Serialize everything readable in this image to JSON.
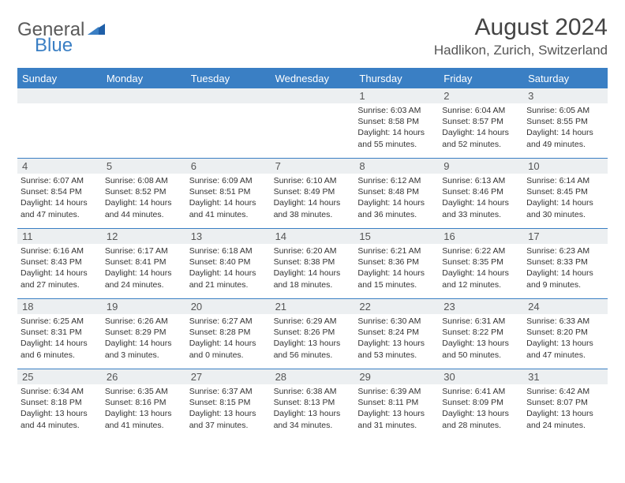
{
  "logo": {
    "text1": "General",
    "text2": "Blue"
  },
  "title": "August 2024",
  "location": "Hadlikon, Zurich, Switzerland",
  "colors": {
    "accent": "#3a7fc4",
    "header_bg": "#3a7fc4",
    "daynum_bg": "#eceff1",
    "text": "#333333"
  },
  "day_headers": [
    "Sunday",
    "Monday",
    "Tuesday",
    "Wednesday",
    "Thursday",
    "Friday",
    "Saturday"
  ],
  "weeks": [
    [
      {
        "n": "",
        "sr": "",
        "ss": "",
        "dl": ""
      },
      {
        "n": "",
        "sr": "",
        "ss": "",
        "dl": ""
      },
      {
        "n": "",
        "sr": "",
        "ss": "",
        "dl": ""
      },
      {
        "n": "",
        "sr": "",
        "ss": "",
        "dl": ""
      },
      {
        "n": "1",
        "sr": "Sunrise: 6:03 AM",
        "ss": "Sunset: 8:58 PM",
        "dl": "Daylight: 14 hours and 55 minutes."
      },
      {
        "n": "2",
        "sr": "Sunrise: 6:04 AM",
        "ss": "Sunset: 8:57 PM",
        "dl": "Daylight: 14 hours and 52 minutes."
      },
      {
        "n": "3",
        "sr": "Sunrise: 6:05 AM",
        "ss": "Sunset: 8:55 PM",
        "dl": "Daylight: 14 hours and 49 minutes."
      }
    ],
    [
      {
        "n": "4",
        "sr": "Sunrise: 6:07 AM",
        "ss": "Sunset: 8:54 PM",
        "dl": "Daylight: 14 hours and 47 minutes."
      },
      {
        "n": "5",
        "sr": "Sunrise: 6:08 AM",
        "ss": "Sunset: 8:52 PM",
        "dl": "Daylight: 14 hours and 44 minutes."
      },
      {
        "n": "6",
        "sr": "Sunrise: 6:09 AM",
        "ss": "Sunset: 8:51 PM",
        "dl": "Daylight: 14 hours and 41 minutes."
      },
      {
        "n": "7",
        "sr": "Sunrise: 6:10 AM",
        "ss": "Sunset: 8:49 PM",
        "dl": "Daylight: 14 hours and 38 minutes."
      },
      {
        "n": "8",
        "sr": "Sunrise: 6:12 AM",
        "ss": "Sunset: 8:48 PM",
        "dl": "Daylight: 14 hours and 36 minutes."
      },
      {
        "n": "9",
        "sr": "Sunrise: 6:13 AM",
        "ss": "Sunset: 8:46 PM",
        "dl": "Daylight: 14 hours and 33 minutes."
      },
      {
        "n": "10",
        "sr": "Sunrise: 6:14 AM",
        "ss": "Sunset: 8:45 PM",
        "dl": "Daylight: 14 hours and 30 minutes."
      }
    ],
    [
      {
        "n": "11",
        "sr": "Sunrise: 6:16 AM",
        "ss": "Sunset: 8:43 PM",
        "dl": "Daylight: 14 hours and 27 minutes."
      },
      {
        "n": "12",
        "sr": "Sunrise: 6:17 AM",
        "ss": "Sunset: 8:41 PM",
        "dl": "Daylight: 14 hours and 24 minutes."
      },
      {
        "n": "13",
        "sr": "Sunrise: 6:18 AM",
        "ss": "Sunset: 8:40 PM",
        "dl": "Daylight: 14 hours and 21 minutes."
      },
      {
        "n": "14",
        "sr": "Sunrise: 6:20 AM",
        "ss": "Sunset: 8:38 PM",
        "dl": "Daylight: 14 hours and 18 minutes."
      },
      {
        "n": "15",
        "sr": "Sunrise: 6:21 AM",
        "ss": "Sunset: 8:36 PM",
        "dl": "Daylight: 14 hours and 15 minutes."
      },
      {
        "n": "16",
        "sr": "Sunrise: 6:22 AM",
        "ss": "Sunset: 8:35 PM",
        "dl": "Daylight: 14 hours and 12 minutes."
      },
      {
        "n": "17",
        "sr": "Sunrise: 6:23 AM",
        "ss": "Sunset: 8:33 PM",
        "dl": "Daylight: 14 hours and 9 minutes."
      }
    ],
    [
      {
        "n": "18",
        "sr": "Sunrise: 6:25 AM",
        "ss": "Sunset: 8:31 PM",
        "dl": "Daylight: 14 hours and 6 minutes."
      },
      {
        "n": "19",
        "sr": "Sunrise: 6:26 AM",
        "ss": "Sunset: 8:29 PM",
        "dl": "Daylight: 14 hours and 3 minutes."
      },
      {
        "n": "20",
        "sr": "Sunrise: 6:27 AM",
        "ss": "Sunset: 8:28 PM",
        "dl": "Daylight: 14 hours and 0 minutes."
      },
      {
        "n": "21",
        "sr": "Sunrise: 6:29 AM",
        "ss": "Sunset: 8:26 PM",
        "dl": "Daylight: 13 hours and 56 minutes."
      },
      {
        "n": "22",
        "sr": "Sunrise: 6:30 AM",
        "ss": "Sunset: 8:24 PM",
        "dl": "Daylight: 13 hours and 53 minutes."
      },
      {
        "n": "23",
        "sr": "Sunrise: 6:31 AM",
        "ss": "Sunset: 8:22 PM",
        "dl": "Daylight: 13 hours and 50 minutes."
      },
      {
        "n": "24",
        "sr": "Sunrise: 6:33 AM",
        "ss": "Sunset: 8:20 PM",
        "dl": "Daylight: 13 hours and 47 minutes."
      }
    ],
    [
      {
        "n": "25",
        "sr": "Sunrise: 6:34 AM",
        "ss": "Sunset: 8:18 PM",
        "dl": "Daylight: 13 hours and 44 minutes."
      },
      {
        "n": "26",
        "sr": "Sunrise: 6:35 AM",
        "ss": "Sunset: 8:16 PM",
        "dl": "Daylight: 13 hours and 41 minutes."
      },
      {
        "n": "27",
        "sr": "Sunrise: 6:37 AM",
        "ss": "Sunset: 8:15 PM",
        "dl": "Daylight: 13 hours and 37 minutes."
      },
      {
        "n": "28",
        "sr": "Sunrise: 6:38 AM",
        "ss": "Sunset: 8:13 PM",
        "dl": "Daylight: 13 hours and 34 minutes."
      },
      {
        "n": "29",
        "sr": "Sunrise: 6:39 AM",
        "ss": "Sunset: 8:11 PM",
        "dl": "Daylight: 13 hours and 31 minutes."
      },
      {
        "n": "30",
        "sr": "Sunrise: 6:41 AM",
        "ss": "Sunset: 8:09 PM",
        "dl": "Daylight: 13 hours and 28 minutes."
      },
      {
        "n": "31",
        "sr": "Sunrise: 6:42 AM",
        "ss": "Sunset: 8:07 PM",
        "dl": "Daylight: 13 hours and 24 minutes."
      }
    ]
  ]
}
